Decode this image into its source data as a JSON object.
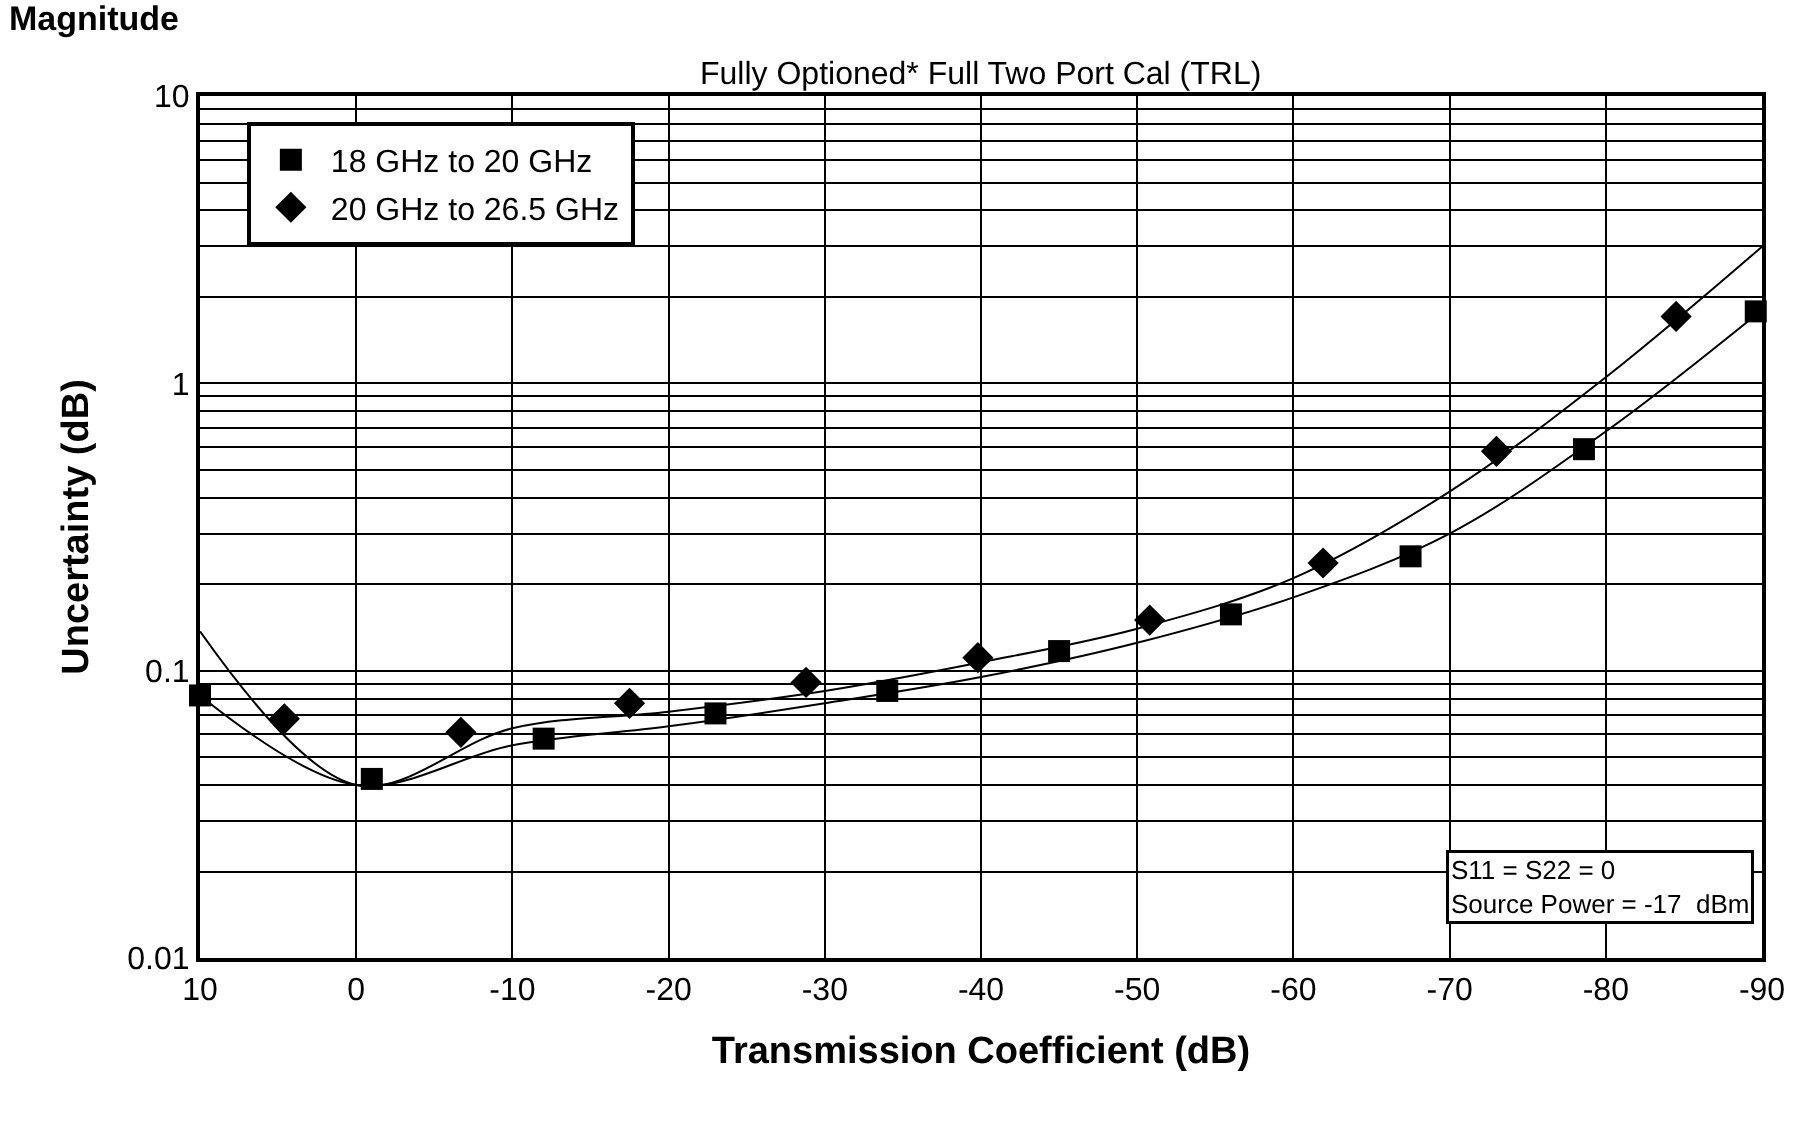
{
  "chart_data": {
    "type": "scatter",
    "title": "Magnitude",
    "subtitle": "Fully Optioned* Full Two Port Cal (TRL)",
    "xlabel": "Transmission Coefficient (dB)",
    "ylabel": "Uncertainty (dB)",
    "log": "y",
    "grid": true,
    "legend": "top left",
    "xlim": [
      10,
      -90
    ],
    "xticks": [
      10,
      0,
      -10,
      -20,
      -30,
      -40,
      -50,
      -60,
      -70,
      -80,
      -90
    ],
    "ylim": [
      0.01,
      10
    ],
    "yticks": [
      0.01,
      {
        "value": 0.02,
        "label": null
      },
      {
        "value": 0.03,
        "label": null
      },
      {
        "value": 0.04,
        "label": null
      },
      {
        "value": 0.05,
        "label": null
      },
      {
        "value": 0.06,
        "label": null
      },
      {
        "value": 0.07,
        "label": null
      },
      {
        "value": 0.08,
        "label": null
      },
      {
        "value": 0.09,
        "label": null
      },
      0.1,
      {
        "value": 0.2,
        "label": null
      },
      {
        "value": 0.3,
        "label": null
      },
      {
        "value": 0.4,
        "label": null
      },
      {
        "value": 0.5,
        "label": null
      },
      {
        "value": 0.6,
        "label": null
      },
      {
        "value": 0.7,
        "label": null
      },
      {
        "value": 0.8,
        "label": null
      },
      {
        "value": 0.9,
        "label": null
      },
      1,
      {
        "value": 2,
        "label": null
      },
      {
        "value": 3,
        "label": null
      },
      {
        "value": 4,
        "label": null
      },
      {
        "value": 5,
        "label": null
      },
      {
        "value": 6,
        "label": null
      },
      {
        "value": 7,
        "label": null
      },
      {
        "value": 8,
        "label": null
      },
      {
        "value": 9,
        "label": null
      },
      10
    ],
    "annotations": [
      "S11 = S22 = 0\nSource Power = -17  dBm"
    ],
    "series": [
      {
        "name": "18 GHz to 20 GHz",
        "marker": "square",
        "color": "#000000",
        "x": [
          10,
          -1,
          -12,
          -23,
          -34,
          -45,
          -56,
          -67.5,
          -78.6,
          -89.6
        ],
        "values": [
          0.082,
          0.042,
          0.058,
          0.071,
          0.085,
          0.117,
          0.157,
          0.25,
          0.59,
          1.78
        ]
      },
      {
        "name": "20 GHz to 26.5 GHz",
        "marker": "diamond",
        "color": "#000000",
        "x": [
          4.6,
          -6.7,
          -17.5,
          -28.8,
          -39.8,
          -50.8,
          -61.9,
          -73,
          -84.5
        ],
        "values": [
          0.068,
          0.061,
          0.077,
          0.091,
          0.111,
          0.15,
          0.237,
          0.58,
          1.71
        ]
      },
      {
        "type": "line",
        "marker": "none",
        "line_style": "solid",
        "color": "#000000",
        "x": [
          10,
          0,
          -10,
          -20,
          -30,
          -40,
          -50,
          -60,
          -70,
          -80,
          -90
        ],
        "values": [
          0.082,
          0.04,
          0.055,
          0.064,
          0.077,
          0.095,
          0.125,
          0.18,
          0.3,
          0.68,
          1.8
        ]
      },
      {
        "type": "line",
        "marker": "none",
        "line_style": "solid",
        "color": "#000000",
        "x": [
          10,
          0,
          -10,
          -20,
          -30,
          -40,
          -50,
          -60,
          -70,
          -80,
          -90
        ],
        "values": [
          0.137,
          0.04,
          0.063,
          0.072,
          0.085,
          0.107,
          0.14,
          0.21,
          0.42,
          1.05,
          2.99
        ]
      }
    ]
  }
}
